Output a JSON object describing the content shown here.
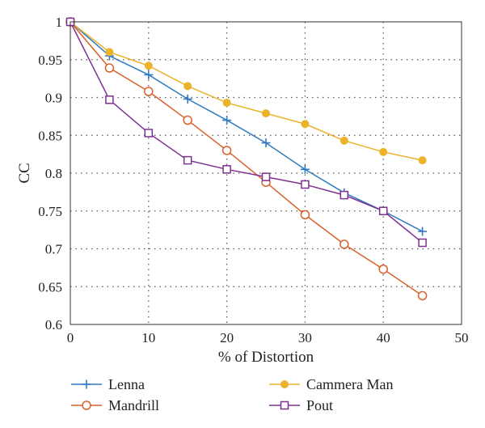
{
  "chart_data": {
    "type": "line",
    "xlabel": "% of Distortion",
    "ylabel": "CC",
    "xlim": [
      0,
      50
    ],
    "ylim": [
      0.6,
      1.0
    ],
    "xticks": [
      0,
      10,
      20,
      30,
      40,
      50
    ],
    "xtick_labels": [
      "0",
      "10",
      "20",
      "30",
      "40",
      "50"
    ],
    "yticks": [
      0.6,
      0.65,
      0.7,
      0.75,
      0.8,
      0.85,
      0.9,
      0.95,
      1.0
    ],
    "ytick_labels": [
      "0.6",
      "0.65",
      "0.7",
      "0.75",
      "0.8",
      "0.85",
      "0.9",
      "0.95",
      "1"
    ],
    "grid": true,
    "legend_position": "bottom",
    "series": [
      {
        "name": "Lenna",
        "color": "#2f7cc0",
        "marker": "plus",
        "x": [
          0,
          5,
          10,
          15,
          20,
          25,
          30,
          35,
          40,
          45
        ],
        "y": [
          1.0,
          0.955,
          0.93,
          0.898,
          0.87,
          0.84,
          0.805,
          0.774,
          0.75,
          0.723
        ]
      },
      {
        "name": "Cammera Man",
        "color": "#eab32a",
        "marker": "filled-circle",
        "x": [
          0,
          5,
          10,
          15,
          20,
          25,
          30,
          35,
          40,
          45
        ],
        "y": [
          1.0,
          0.96,
          0.942,
          0.915,
          0.893,
          0.879,
          0.865,
          0.843,
          0.828,
          0.817
        ]
      },
      {
        "name": "Mandrill",
        "color": "#d9612a",
        "marker": "open-circle",
        "x": [
          0,
          5,
          10,
          15,
          20,
          25,
          30,
          35,
          40,
          45
        ],
        "y": [
          1.0,
          0.939,
          0.908,
          0.87,
          0.83,
          0.788,
          0.745,
          0.706,
          0.673,
          0.638
        ]
      },
      {
        "name": "Pout",
        "color": "#7f3191",
        "marker": "open-square",
        "x": [
          0,
          5,
          10,
          15,
          20,
          25,
          30,
          35,
          40,
          45
        ],
        "y": [
          1.0,
          0.897,
          0.853,
          0.817,
          0.805,
          0.795,
          0.785,
          0.771,
          0.75,
          0.708
        ]
      }
    ]
  }
}
